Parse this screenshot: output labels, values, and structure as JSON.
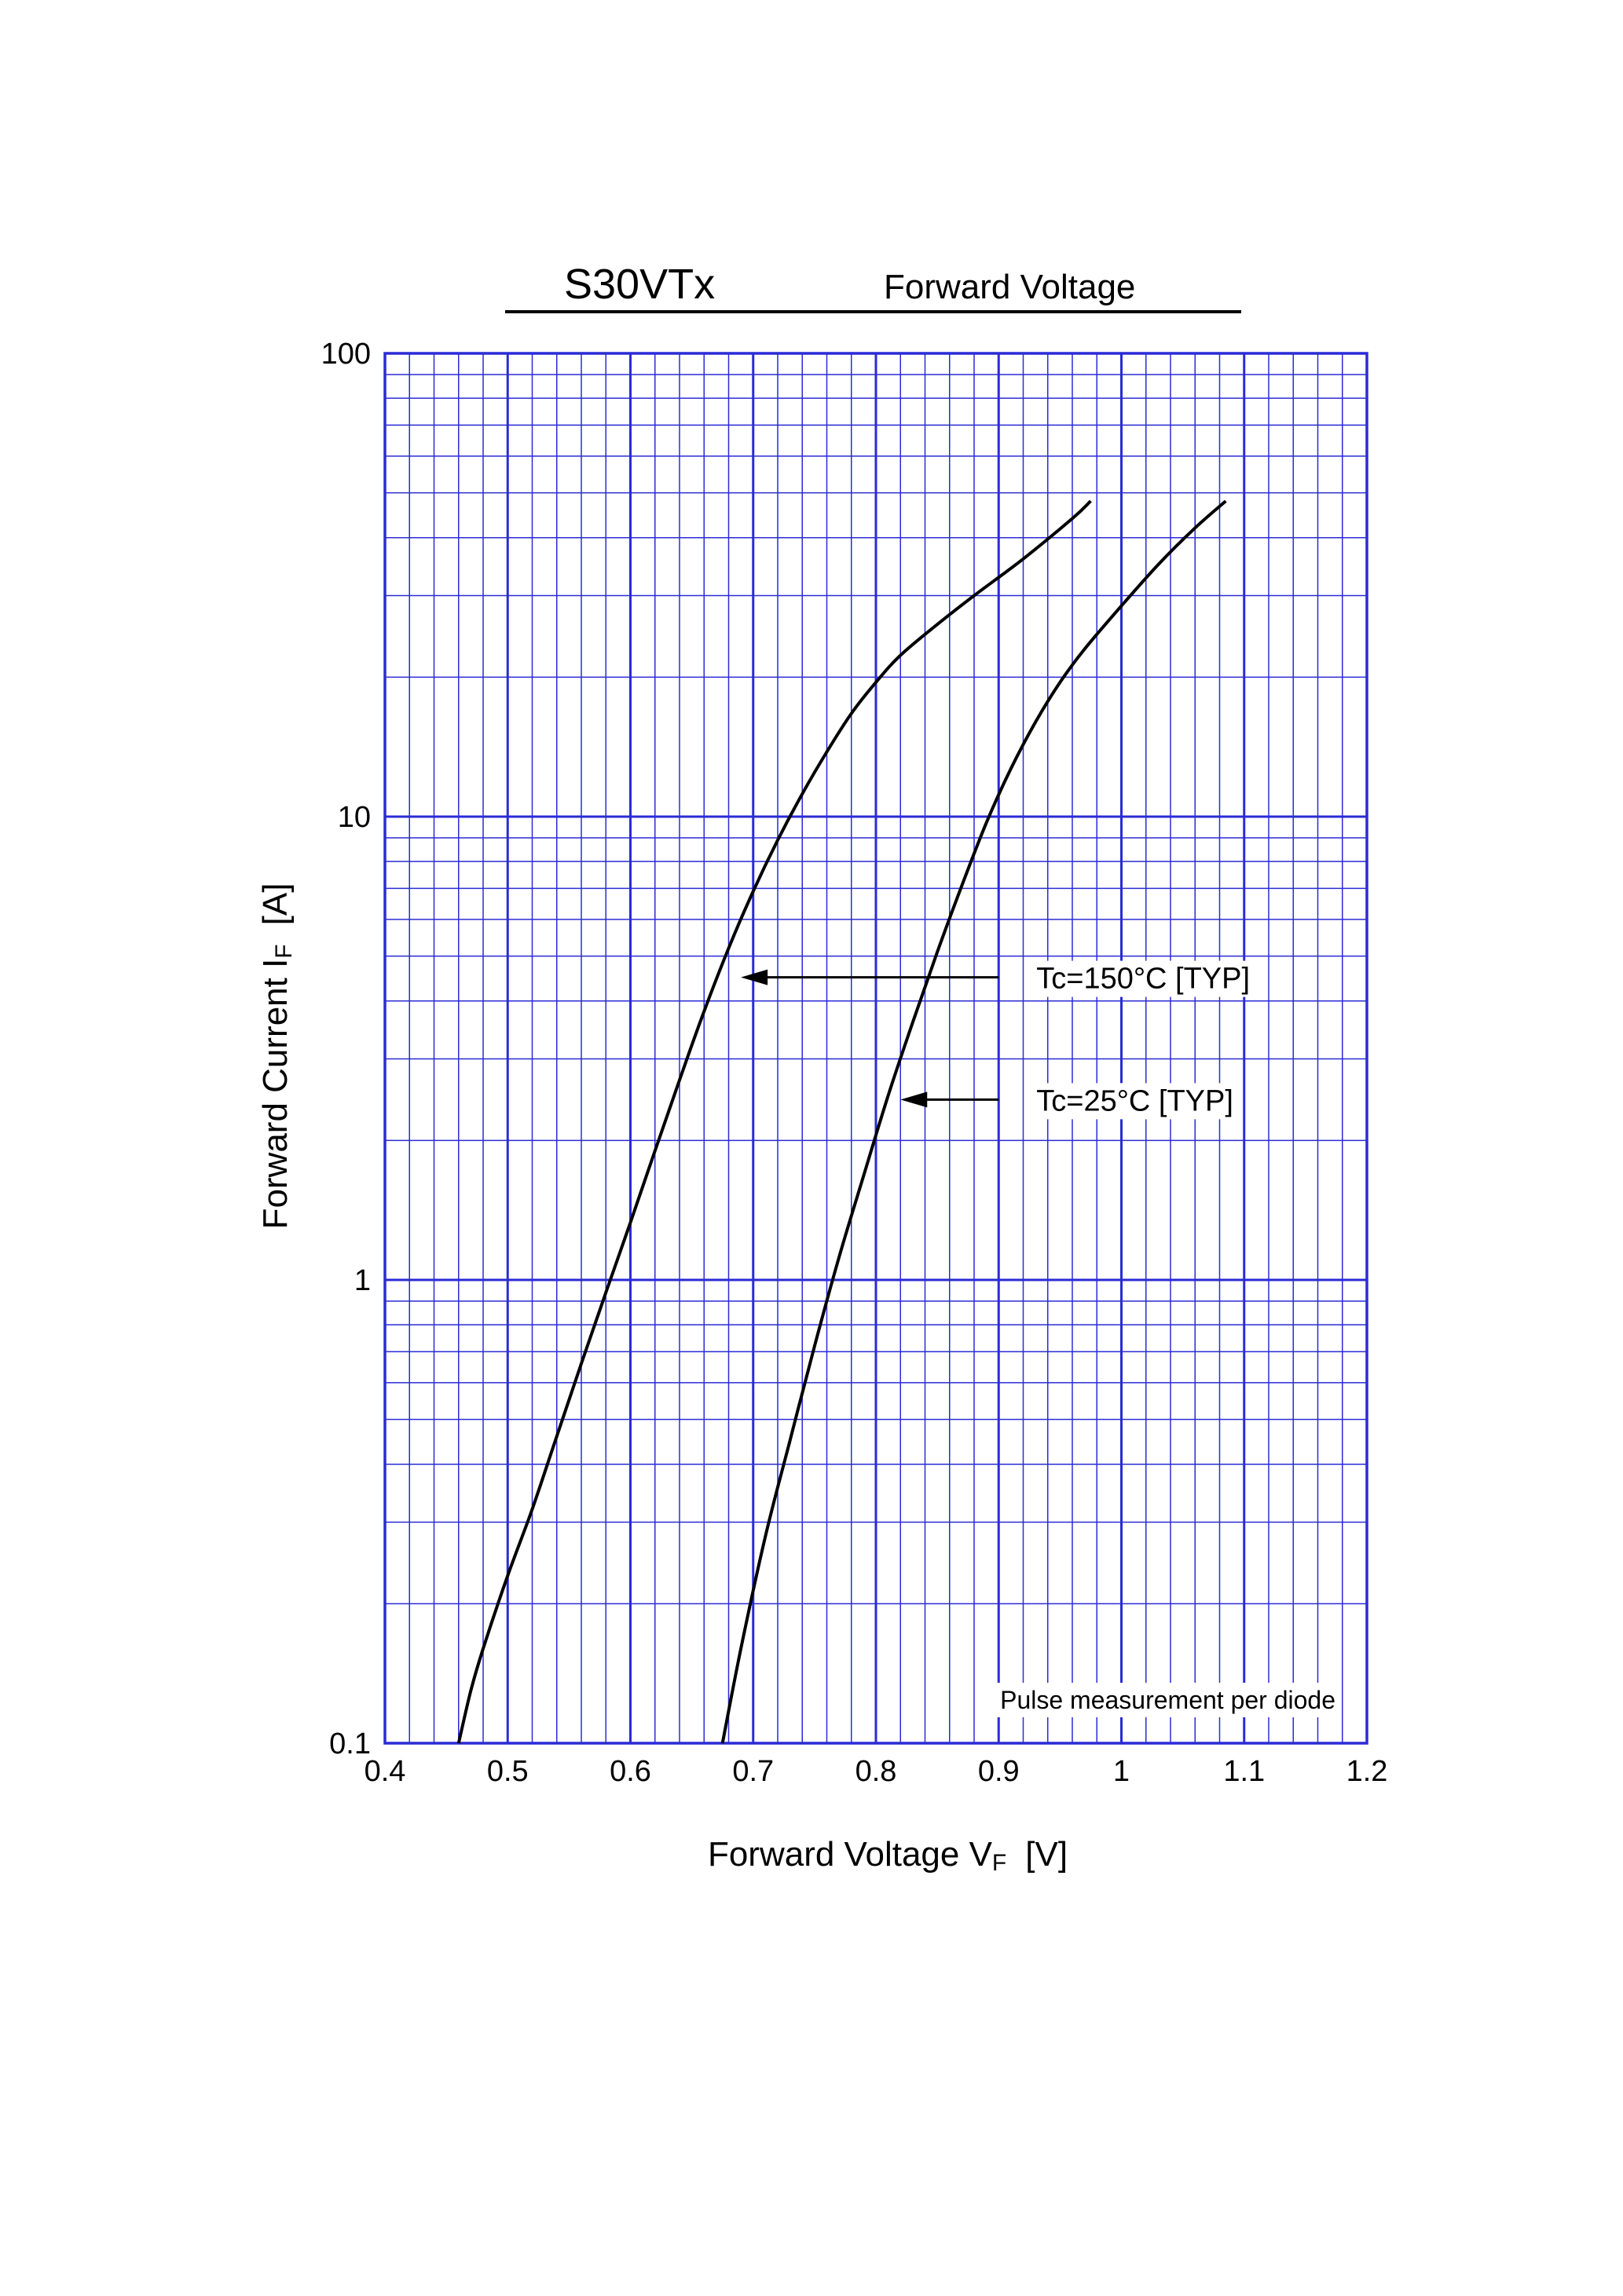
{
  "page": {
    "background": "#ffffff"
  },
  "header": {
    "title": "S30VTx",
    "subtitle": "Forward Voltage"
  },
  "chart_data": {
    "type": "line",
    "xscale": "linear",
    "yscale": "log",
    "xlim": [
      0.4,
      1.2
    ],
    "ylim": [
      0.1,
      100
    ],
    "grid": true,
    "grid_color": "#2b2bd6",
    "line_color": "#000000",
    "xlabel": {
      "main": "Forward Voltage  V",
      "sub": "F",
      "unit": "[V]"
    },
    "ylabel": {
      "main": "Forward Current  I",
      "sub": "F",
      "unit": "[A]"
    },
    "xticks": [
      {
        "value": 0.4,
        "label": "0.4"
      },
      {
        "value": 0.5,
        "label": "0.5"
      },
      {
        "value": 0.6,
        "label": "0.6"
      },
      {
        "value": 0.7,
        "label": "0.7"
      },
      {
        "value": 0.8,
        "label": "0.8"
      },
      {
        "value": 0.9,
        "label": "0.9"
      },
      {
        "value": 1.0,
        "label": "1"
      },
      {
        "value": 1.1,
        "label": "1.1"
      },
      {
        "value": 1.2,
        "label": "1.2"
      }
    ],
    "yticks": [
      {
        "value": 0.1,
        "label": "0.1"
      },
      {
        "value": 1,
        "label": "1"
      },
      {
        "value": 10,
        "label": "10"
      },
      {
        "value": 100,
        "label": "100"
      }
    ],
    "series": [
      {
        "name": "Tc=150°C [TYP]",
        "x": [
          0.46,
          0.47,
          0.48,
          0.5,
          0.52,
          0.54,
          0.56,
          0.58,
          0.6,
          0.62,
          0.64,
          0.66,
          0.68,
          0.7,
          0.72,
          0.74,
          0.76,
          0.78,
          0.8,
          0.82,
          0.85,
          0.88,
          0.92,
          0.96,
          0.975
        ],
        "y": [
          0.1,
          0.13,
          0.16,
          0.23,
          0.32,
          0.46,
          0.66,
          0.94,
          1.33,
          1.9,
          2.7,
          3.8,
          5.2,
          6.9,
          8.9,
          11.2,
          13.8,
          16.7,
          19.5,
          22.3,
          26.0,
          30.0,
          36.0,
          44.0,
          48.0
        ]
      },
      {
        "name": "Tc=25°C [TYP]",
        "x": [
          0.675,
          0.69,
          0.71,
          0.73,
          0.75,
          0.77,
          0.79,
          0.81,
          0.83,
          0.85,
          0.87,
          0.89,
          0.91,
          0.93,
          0.95,
          0.97,
          1.0,
          1.03,
          1.06,
          1.085
        ],
        "y": [
          0.1,
          0.16,
          0.28,
          0.45,
          0.72,
          1.12,
          1.68,
          2.5,
          3.6,
          5.1,
          7.1,
          9.7,
          12.7,
          16.0,
          19.5,
          23.0,
          28.5,
          35.0,
          42.0,
          48.0
        ]
      }
    ],
    "annotations": [
      {
        "text": "Tc=150°C [TYP]",
        "arrow_from": [
          0.9,
          4.5
        ],
        "arrow_to": [
          0.69,
          4.5
        ]
      },
      {
        "text": "Tc=25°C [TYP]",
        "arrow_from": [
          0.9,
          2.45
        ],
        "arrow_to": [
          0.82,
          2.45
        ]
      }
    ],
    "note": "Pulse measurement per diode"
  }
}
